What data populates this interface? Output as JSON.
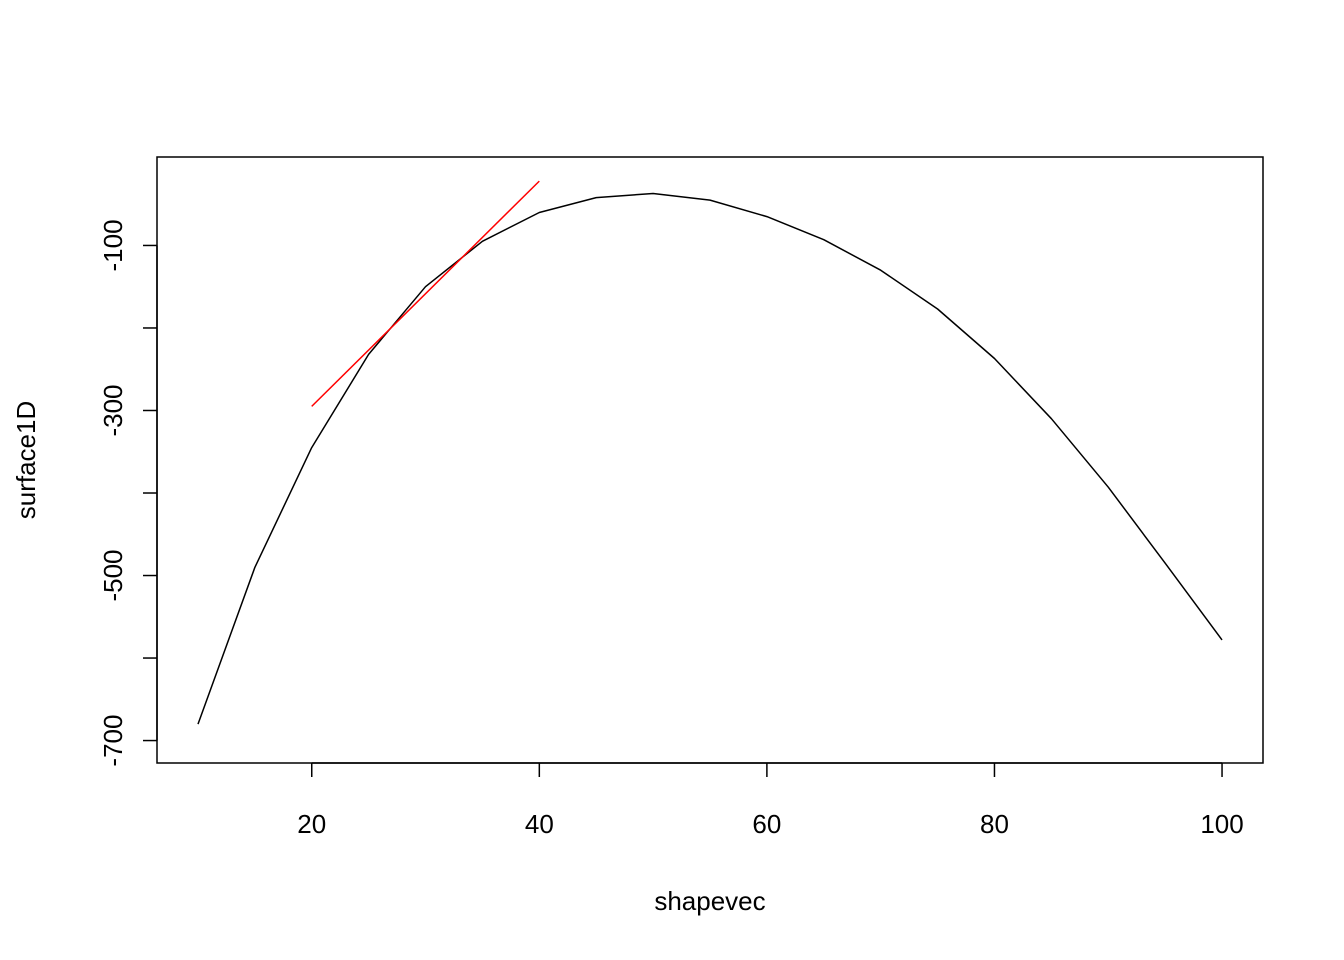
{
  "chart_data": {
    "type": "line",
    "xlabel": "shapevec",
    "ylabel": "surface1D",
    "xlim": [
      10,
      100
    ],
    "ylim": [
      -700,
      -20
    ],
    "x_ticks": [
      20,
      40,
      60,
      80,
      100
    ],
    "y_ticks": [
      -700,
      -600,
      -500,
      -400,
      -300,
      -200,
      -100
    ],
    "y_tick_labels": [
      "-700",
      "",
      "-500",
      "",
      "-300",
      "",
      "-100"
    ],
    "grid": false,
    "series": [
      {
        "color": "#000000",
        "x": [
          10,
          15,
          20,
          25,
          30,
          35,
          40,
          45,
          50,
          55,
          60,
          65,
          70,
          75,
          80,
          85,
          90,
          95,
          100
        ],
        "y": [
          -680,
          -490,
          -345,
          -232,
          -150,
          -95,
          -60,
          -42,
          -37,
          -45,
          -65,
          -93,
          -130,
          -177,
          -237,
          -310,
          -393,
          -485,
          -578
        ]
      },
      {
        "color": "#ff0000",
        "x": [
          20,
          40
        ],
        "y": [
          -295,
          -22
        ]
      }
    ]
  }
}
